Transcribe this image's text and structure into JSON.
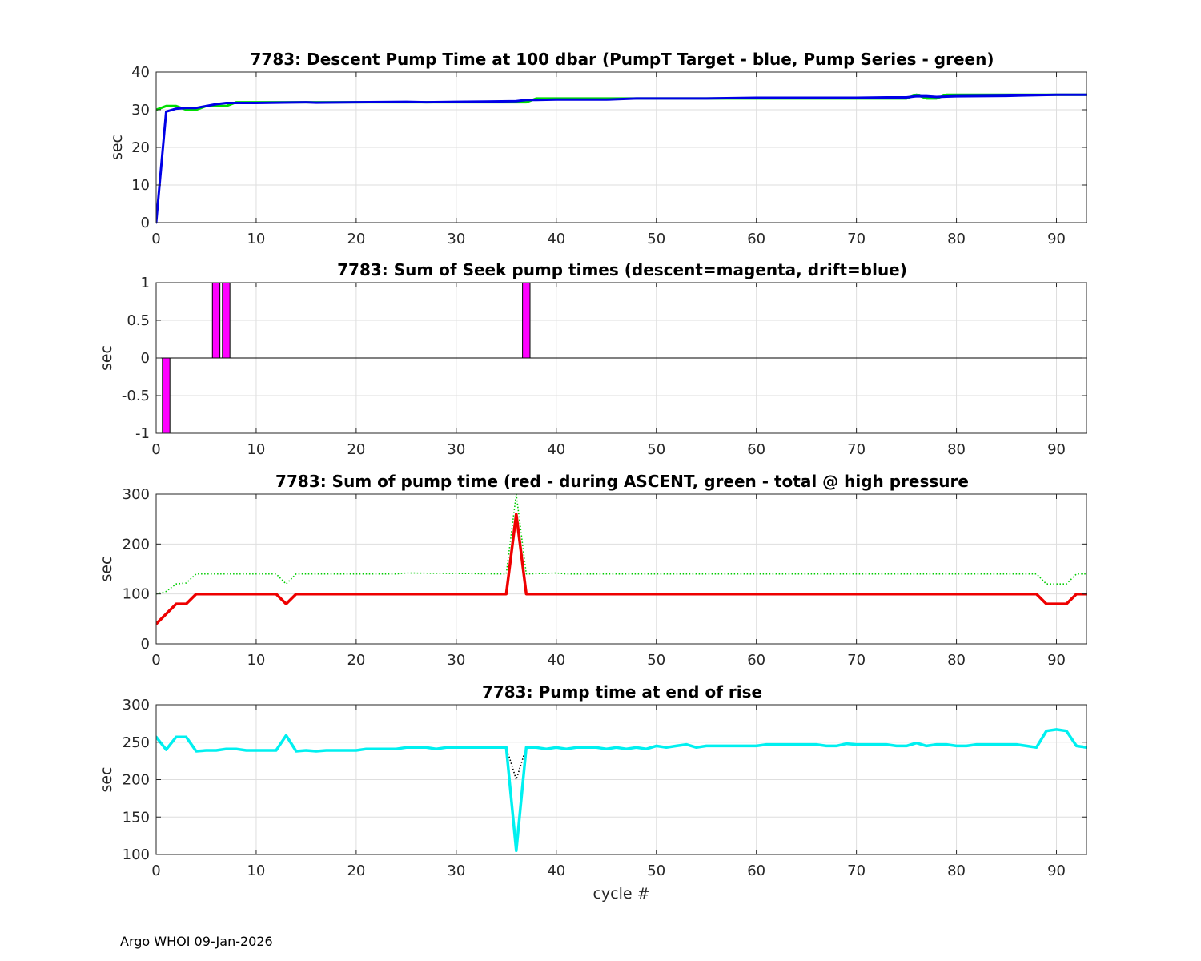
{
  "footer": "Argo WHOI 09-Jan-2026",
  "chart_data": [
    {
      "type": "line",
      "title": "7783: Descent Pump Time at 100 dbar (PumpT Target - blue, Pump Series - green)",
      "ylabel": "sec",
      "xlabel": "",
      "xlim": [
        0,
        93
      ],
      "ylim": [
        0,
        40
      ],
      "xticks": [
        0,
        10,
        20,
        30,
        40,
        50,
        60,
        70,
        80,
        90
      ],
      "yticks": [
        0,
        10,
        20,
        30,
        40
      ],
      "grid": true,
      "series": [
        {
          "color": "#00dd00",
          "style": "solid",
          "width": 3,
          "x": [
            0,
            1,
            2,
            3,
            4,
            5,
            6,
            7,
            8,
            10,
            15,
            16,
            20,
            25,
            27,
            30,
            33,
            36,
            37,
            38,
            40,
            45,
            48,
            55,
            60,
            65,
            70,
            73,
            75,
            76,
            77,
            78,
            79,
            80,
            85,
            90,
            93
          ],
          "y": [
            30,
            31,
            31,
            30,
            30,
            31,
            31,
            31,
            32,
            32,
            32,
            32,
            32,
            32,
            32,
            32,
            32,
            32,
            32,
            33,
            33,
            33,
            33,
            33,
            33,
            33,
            33,
            33,
            33,
            34,
            33,
            33,
            34,
            34,
            34,
            34,
            34
          ]
        },
        {
          "color": "#0000e6",
          "style": "solid",
          "width": 3,
          "x": [
            0,
            1,
            2,
            3,
            4,
            5,
            6,
            7,
            8,
            10,
            15,
            16,
            20,
            25,
            27,
            30,
            33,
            36,
            37,
            38,
            40,
            45,
            48,
            55,
            60,
            65,
            70,
            73,
            75,
            76,
            77,
            78,
            79,
            80,
            85,
            90,
            93
          ],
          "y": [
            0,
            29.5,
            30.3,
            30.5,
            30.5,
            31,
            31.5,
            31.8,
            31.8,
            31.8,
            32,
            31.9,
            32,
            32.1,
            32,
            32.1,
            32.2,
            32.3,
            32.6,
            32.6,
            32.7,
            32.7,
            33,
            33,
            33.2,
            33.2,
            33.2,
            33.3,
            33.3,
            33.6,
            33.6,
            33.4,
            33.5,
            33.6,
            33.7,
            34,
            34
          ]
        }
      ]
    },
    {
      "type": "bar",
      "title": "7783: Sum of Seek pump times (descent=magenta, drift=blue)",
      "ylabel": "sec",
      "xlabel": "",
      "xlim": [
        0,
        93
      ],
      "ylim": [
        -1,
        1
      ],
      "xticks": [
        0,
        10,
        20,
        30,
        40,
        50,
        60,
        70,
        80,
        90
      ],
      "yticks": [
        -1,
        -0.5,
        0,
        0.5,
        1
      ],
      "grid": true,
      "bar_color": "#ff00ff",
      "bar_width": 0.75,
      "bars": [
        {
          "x": 1,
          "value": -1
        },
        {
          "x": 6,
          "value": 1
        },
        {
          "x": 7,
          "value": 1
        },
        {
          "x": 37,
          "value": 1
        }
      ]
    },
    {
      "type": "line",
      "title": "7783: Sum of pump time (red - during ASCENT, green - total @ high pressure",
      "ylabel": "sec",
      "xlabel": "",
      "xlim": [
        0,
        93
      ],
      "ylim": [
        0,
        300
      ],
      "xticks": [
        0,
        10,
        20,
        30,
        40,
        50,
        60,
        70,
        80,
        90
      ],
      "yticks": [
        0,
        100,
        200,
        300
      ],
      "grid": true,
      "series": [
        {
          "color": "#00cc00",
          "style": "dotted",
          "width": 1.6,
          "x": [
            0,
            1,
            2,
            3,
            4,
            5,
            12,
            13,
            14,
            15,
            24,
            25,
            35,
            36,
            37,
            40,
            41,
            88,
            89,
            90,
            91,
            92,
            93
          ],
          "y": [
            100,
            105,
            120,
            122,
            140,
            140,
            140,
            120,
            140,
            140,
            140,
            142,
            140,
            300,
            140,
            142,
            140,
            140,
            120,
            120,
            120,
            140,
            140
          ]
        },
        {
          "color": "#ee0000",
          "style": "solid",
          "width": 3.5,
          "x": [
            0,
            1,
            2,
            3,
            4,
            5,
            12,
            13,
            14,
            15,
            35,
            36,
            37,
            38,
            88,
            89,
            90,
            91,
            92,
            93
          ],
          "y": [
            40,
            60,
            80,
            80,
            100,
            100,
            100,
            80,
            100,
            100,
            100,
            260,
            100,
            100,
            100,
            80,
            80,
            80,
            100,
            100
          ]
        }
      ]
    },
    {
      "type": "line",
      "title": "7783: Pump time at end of rise",
      "ylabel": "sec",
      "xlabel": "cycle #",
      "xlim": [
        0,
        93
      ],
      "ylim": [
        100,
        300
      ],
      "xticks": [
        0,
        10,
        20,
        30,
        40,
        50,
        60,
        70,
        80,
        90
      ],
      "yticks": [
        100,
        150,
        200,
        250,
        300
      ],
      "grid": true,
      "series": [
        {
          "color": "#000000",
          "style": "dotted",
          "width": 1.6,
          "x": [
            35,
            36,
            37
          ],
          "y": [
            243,
            200,
            243
          ]
        },
        {
          "color": "#00f0f0",
          "style": "solid",
          "width": 3.5,
          "x": [
            0,
            1,
            2,
            3,
            4,
            5,
            6,
            7,
            8,
            9,
            10,
            11,
            12,
            13,
            14,
            15,
            16,
            17,
            18,
            19,
            20,
            21,
            22,
            23,
            24,
            25,
            26,
            27,
            28,
            29,
            30,
            31,
            32,
            33,
            34,
            35,
            36,
            37,
            38,
            39,
            40,
            41,
            42,
            43,
            44,
            45,
            46,
            47,
            48,
            49,
            50,
            51,
            52,
            53,
            54,
            55,
            56,
            57,
            58,
            59,
            60,
            61,
            62,
            63,
            64,
            65,
            66,
            67,
            68,
            69,
            70,
            71,
            72,
            73,
            74,
            75,
            76,
            77,
            78,
            79,
            80,
            81,
            82,
            83,
            84,
            85,
            86,
            87,
            88,
            89,
            90,
            91,
            92,
            93
          ],
          "y": [
            257,
            240,
            257,
            257,
            238,
            239,
            239,
            241,
            241,
            239,
            239,
            239,
            239,
            259,
            238,
            239,
            238,
            239,
            239,
            239,
            239,
            241,
            241,
            241,
            241,
            243,
            243,
            243,
            241,
            243,
            243,
            243,
            243,
            243,
            243,
            243,
            105,
            243,
            243,
            241,
            243,
            241,
            243,
            243,
            243,
            241,
            243,
            241,
            243,
            241,
            245,
            243,
            245,
            247,
            243,
            245,
            245,
            245,
            245,
            245,
            245,
            247,
            247,
            247,
            247,
            247,
            247,
            245,
            245,
            248,
            247,
            247,
            247,
            247,
            245,
            245,
            249,
            245,
            247,
            247,
            245,
            245,
            247,
            247,
            247,
            247,
            247,
            245,
            243,
            265,
            267,
            265,
            245,
            243
          ]
        }
      ]
    }
  ]
}
